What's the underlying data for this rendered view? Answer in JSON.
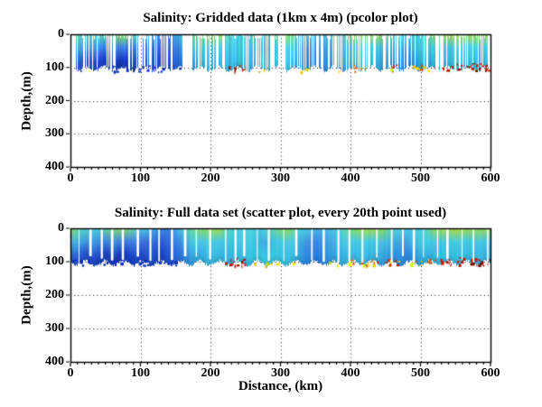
{
  "chart_data": {
    "background": "#ffffff",
    "axis_color": "#000000",
    "panels": [
      {
        "type": "heatmap",
        "title": "Salinity: Gridded data (1km x 4m) (pcolor plot)",
        "xlabel": "",
        "ylabel": "Depth,(m)",
        "xlim": [
          0,
          600
        ],
        "ylim": [
          400,
          0
        ],
        "xticks": [
          0,
          100,
          200,
          300,
          400,
          500,
          600
        ],
        "yticks": [
          0,
          100,
          200,
          300,
          400
        ],
        "x_minor_tick_step": 10,
        "grid": "dotted-black",
        "data_extent": {
          "x_km": [
            0,
            600
          ],
          "depth_m": [
            0,
            114
          ]
        },
        "style": {
          "seed": 20240117,
          "gap_probability": 0.3,
          "jitter": 0.18
        }
      },
      {
        "type": "scatter",
        "title": "Salinity: Full data set (scatter plot, every 20th point used)",
        "xlabel": "Distance, (km)",
        "ylabel": "Depth,(m)",
        "xlim": [
          0,
          600
        ],
        "ylim": [
          400,
          0
        ],
        "xticks": [
          0,
          100,
          200,
          300,
          400,
          500,
          600
        ],
        "yticks": [
          0,
          100,
          200,
          300,
          400
        ],
        "x_minor_tick_step": 10,
        "grid": "dotted-black",
        "data_extent": {
          "x_km": [
            0,
            600
          ],
          "depth_m": [
            0,
            114
          ]
        },
        "style": {
          "seed": 987654,
          "gap_probability": 0,
          "jitter": 0.055
        }
      }
    ],
    "field": {
      "surface": [
        [
          0,
          "#8cdb60"
        ],
        [
          15,
          "#5ad4c0"
        ],
        [
          35,
          "#49cfe6"
        ],
        [
          55,
          "#70d88e"
        ],
        [
          75,
          "#8edb5e"
        ],
        [
          95,
          "#55d2d8"
        ],
        [
          110,
          "#49c2e6"
        ],
        [
          125,
          "#3f8fe0"
        ],
        [
          140,
          "#3f7de0"
        ],
        [
          155,
          "#49bce6"
        ],
        [
          170,
          "#63d69e"
        ],
        [
          185,
          "#82db6c"
        ],
        [
          200,
          "#95db58"
        ],
        [
          212,
          "#a8db4e"
        ],
        [
          225,
          "#5ad4c4"
        ],
        [
          240,
          "#49cfe6"
        ],
        [
          255,
          "#52d2da"
        ],
        [
          270,
          "#49cbe6"
        ],
        [
          285,
          "#5ad4bc"
        ],
        [
          300,
          "#7fdb70"
        ],
        [
          312,
          "#8edb5e"
        ],
        [
          325,
          "#55d2d4"
        ],
        [
          340,
          "#49c6e6"
        ],
        [
          355,
          "#49b2e6"
        ],
        [
          370,
          "#49c2e6"
        ],
        [
          385,
          "#52d2dc"
        ],
        [
          400,
          "#7cdb74"
        ],
        [
          415,
          "#9bdb55"
        ],
        [
          430,
          "#a4db50"
        ],
        [
          445,
          "#8adb62"
        ],
        [
          460,
          "#5ad4c8"
        ],
        [
          475,
          "#49cfe6"
        ],
        [
          490,
          "#49cbe6"
        ],
        [
          505,
          "#55d2d6"
        ],
        [
          520,
          "#90db5a"
        ],
        [
          535,
          "#aadb4c"
        ],
        [
          550,
          "#b2db47"
        ],
        [
          565,
          "#a0db52"
        ],
        [
          580,
          "#95db58"
        ],
        [
          600,
          "#9edb53"
        ]
      ],
      "mid": [
        [
          0,
          "#45b6e4"
        ],
        [
          20,
          "#3f9ce2"
        ],
        [
          40,
          "#3f8ce2"
        ],
        [
          60,
          "#3f84e2"
        ],
        [
          80,
          "#3f7ce2"
        ],
        [
          100,
          "#3f74e2"
        ],
        [
          115,
          "#3566da"
        ],
        [
          130,
          "#2f5cd6"
        ],
        [
          145,
          "#3570dc"
        ],
        [
          160,
          "#3f9ee2"
        ],
        [
          175,
          "#45c6e4"
        ],
        [
          195,
          "#45cce4"
        ],
        [
          215,
          "#45c8e4"
        ],
        [
          235,
          "#45c2e4"
        ],
        [
          255,
          "#45cce4"
        ],
        [
          275,
          "#3fa8e2"
        ],
        [
          295,
          "#45c6e4"
        ],
        [
          315,
          "#45cce4"
        ],
        [
          335,
          "#3f96e2"
        ],
        [
          350,
          "#3f86e2"
        ],
        [
          365,
          "#3f9ce2"
        ],
        [
          380,
          "#45bce4"
        ],
        [
          400,
          "#45cce4"
        ],
        [
          420,
          "#45c8e4"
        ],
        [
          440,
          "#45c2e4"
        ],
        [
          460,
          "#3fb0e2"
        ],
        [
          475,
          "#3f9ae2"
        ],
        [
          490,
          "#45bce4"
        ],
        [
          510,
          "#45cce4"
        ],
        [
          530,
          "#45c6e4"
        ],
        [
          550,
          "#45cce4"
        ],
        [
          570,
          "#45c8e4"
        ],
        [
          600,
          "#45c4e4"
        ]
      ],
      "deep": [
        [
          0,
          "#2e62d8"
        ],
        [
          25,
          "#2450cc"
        ],
        [
          50,
          "#1c42c2"
        ],
        [
          70,
          "#1638ba"
        ],
        [
          90,
          "#1c46c6"
        ],
        [
          110,
          "#2252d0"
        ],
        [
          130,
          "#1c44c4"
        ],
        [
          150,
          "#2a64da"
        ],
        [
          170,
          "#339ae0"
        ],
        [
          195,
          "#39bce2"
        ],
        [
          225,
          "#39b6e2"
        ],
        [
          255,
          "#39c0e2"
        ],
        [
          285,
          "#39c6e2"
        ],
        [
          315,
          "#39c2e2"
        ],
        [
          335,
          "#2e8ae0"
        ],
        [
          355,
          "#2e7ce0"
        ],
        [
          375,
          "#33a6e0"
        ],
        [
          400,
          "#39bce2"
        ],
        [
          430,
          "#39b8e2"
        ],
        [
          460,
          "#2e96e0"
        ],
        [
          480,
          "#2e86e0"
        ],
        [
          505,
          "#33b0e0"
        ],
        [
          535,
          "#39c0e2"
        ],
        [
          565,
          "#39bce2"
        ],
        [
          600,
          "#39b4e2"
        ]
      ],
      "bottom_anomalies": [
        {
          "x0": 0,
          "x1": 158,
          "color": "#0c2fb4",
          "density": 0.55,
          "depth": [
            92,
            112
          ]
        },
        {
          "x0": 216,
          "x1": 252,
          "color": "#aa1200",
          "density": 0.9,
          "depth": [
            88,
            110
          ]
        },
        {
          "x0": 250,
          "x1": 300,
          "color": "#e8cc00",
          "density": 0.3,
          "depth": [
            96,
            112
          ]
        },
        {
          "x0": 300,
          "x1": 392,
          "color": "#e8d800",
          "density": 0.12,
          "depth": [
            98,
            112
          ]
        },
        {
          "x0": 392,
          "x1": 434,
          "color": "#e06414",
          "density": 0.6,
          "depth": [
            90,
            110
          ]
        },
        {
          "x0": 434,
          "x1": 470,
          "color": "#cc2600",
          "density": 0.65,
          "depth": [
            88,
            110
          ]
        },
        {
          "x0": 493,
          "x1": 522,
          "color": "#d84c00",
          "density": 0.55,
          "depth": [
            90,
            110
          ]
        },
        {
          "x0": 528,
          "x1": 600,
          "color": "#bc1a00",
          "density": 0.95,
          "depth": [
            86,
            110
          ]
        },
        {
          "x0": 556,
          "x1": 600,
          "color": "#7e0e00",
          "density": 0.5,
          "depth": [
            92,
            110
          ]
        },
        {
          "x0": 390,
          "x1": 530,
          "color": "#e8e000",
          "density": 0.25,
          "depth": [
            94,
            110
          ]
        }
      ],
      "wide_gaps": [
        [
          164,
          4
        ],
        [
          209,
          5
        ],
        [
          300,
          4
        ],
        [
          368,
          3
        ],
        [
          455,
          3
        ],
        [
          523,
          4
        ]
      ]
    }
  }
}
